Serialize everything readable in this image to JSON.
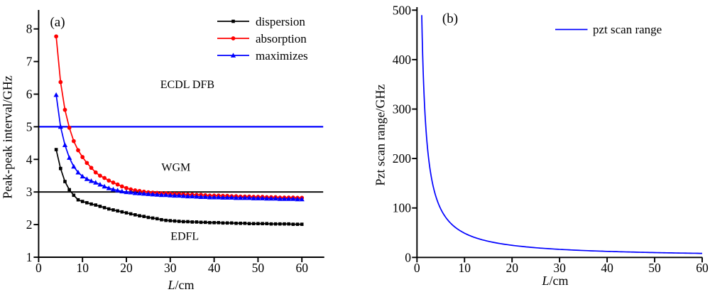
{
  "figure": {
    "background": "#ffffff"
  },
  "chart_data": [
    {
      "type": "line",
      "panel_label": "(a)",
      "xlabel": "L/cm",
      "xlabel_italic": "L",
      "xlabel_unit": "/cm",
      "ylabel": "Peak-peak interval/GHz",
      "xlim": [
        0,
        65
      ],
      "ylim": [
        1,
        8.6
      ],
      "xticks": [
        0,
        10,
        20,
        30,
        40,
        50,
        60
      ],
      "yticks": [
        1,
        2,
        3,
        4,
        5,
        6,
        7,
        8
      ],
      "grid": false,
      "legend_position": "top-right-inside",
      "x": [
        4,
        5,
        6,
        7,
        8,
        9,
        10,
        11,
        12,
        13,
        14,
        15,
        16,
        17,
        18,
        19,
        20,
        21,
        22,
        23,
        24,
        25,
        26,
        27,
        28,
        29,
        30,
        31,
        32,
        33,
        34,
        35,
        36,
        37,
        38,
        39,
        40,
        41,
        42,
        43,
        44,
        45,
        46,
        47,
        48,
        49,
        50,
        51,
        52,
        53,
        54,
        55,
        56,
        57,
        58,
        59,
        60
      ],
      "series": [
        {
          "name": "dispersion",
          "color": "#000000",
          "marker": "square",
          "values": [
            4.3,
            3.72,
            3.32,
            3.07,
            2.9,
            2.76,
            2.71,
            2.67,
            2.63,
            2.6,
            2.56,
            2.52,
            2.48,
            2.45,
            2.42,
            2.39,
            2.36,
            2.33,
            2.3,
            2.27,
            2.25,
            2.22,
            2.2,
            2.18,
            2.15,
            2.13,
            2.12,
            2.11,
            2.1,
            2.09,
            2.09,
            2.08,
            2.08,
            2.07,
            2.07,
            2.06,
            2.06,
            2.06,
            2.05,
            2.05,
            2.05,
            2.04,
            2.04,
            2.04,
            2.03,
            2.03,
            2.03,
            2.03,
            2.03,
            2.02,
            2.02,
            2.02,
            2.02,
            2.02,
            2.01,
            2.01,
            2.01
          ]
        },
        {
          "name": "absorption",
          "color": "#ff0000",
          "marker": "circle",
          "values": [
            7.77,
            6.37,
            5.52,
            4.97,
            4.56,
            4.28,
            4.07,
            3.89,
            3.74,
            3.6,
            3.5,
            3.43,
            3.35,
            3.29,
            3.23,
            3.17,
            3.12,
            3.08,
            3.05,
            3.03,
            3.01,
            2.99,
            2.98,
            2.97,
            2.96,
            2.96,
            2.95,
            2.94,
            2.94,
            2.93,
            2.92,
            2.92,
            2.91,
            2.91,
            2.9,
            2.89,
            2.89,
            2.89,
            2.88,
            2.88,
            2.87,
            2.87,
            2.86,
            2.86,
            2.86,
            2.85,
            2.85,
            2.85,
            2.84,
            2.84,
            2.84,
            2.83,
            2.83,
            2.83,
            2.83,
            2.82,
            2.82
          ]
        },
        {
          "name": "maximizes",
          "color": "#0000ff",
          "marker": "triangle-up",
          "values": [
            5.98,
            5.0,
            4.44,
            4.05,
            3.78,
            3.6,
            3.48,
            3.4,
            3.34,
            3.29,
            3.23,
            3.17,
            3.12,
            3.08,
            3.05,
            3.02,
            3.0,
            2.99,
            2.97,
            2.96,
            2.95,
            2.94,
            2.93,
            2.92,
            2.91,
            2.91,
            2.9,
            2.89,
            2.89,
            2.88,
            2.87,
            2.87,
            2.86,
            2.85,
            2.85,
            2.84,
            2.84,
            2.84,
            2.83,
            2.83,
            2.83,
            2.82,
            2.82,
            2.82,
            2.82,
            2.81,
            2.81,
            2.81,
            2.8,
            2.8,
            2.8,
            2.79,
            2.79,
            2.79,
            2.79,
            2.78,
            2.78
          ]
        }
      ],
      "reference_lines": [
        {
          "y": 5.0,
          "color": "#0000ff"
        },
        {
          "y": 3.0,
          "color": "#000000"
        }
      ],
      "annotations": [
        {
          "text": "ECDL DFB",
          "x": 33.9,
          "y": 6.3
        },
        {
          "text": "WGM",
          "x": 31.3,
          "y": 3.77
        },
        {
          "text": "EDFL",
          "x": 33.3,
          "y": 1.65
        }
      ]
    },
    {
      "type": "line",
      "panel_label": "(b)",
      "xlabel": "L/cm",
      "xlabel_italic": "L",
      "xlabel_unit": "/cm",
      "ylabel": "Pzt scan range/GHz",
      "xlim": [
        0,
        60
      ],
      "ylim": [
        0,
        505
      ],
      "xticks": [
        0,
        10,
        20,
        30,
        40,
        50,
        60
      ],
      "yticks": [
        0,
        100,
        200,
        300,
        400,
        500
      ],
      "grid": false,
      "legend_position": "top-right-inside",
      "series": [
        {
          "name": "pzt scan range",
          "color": "#0000ff",
          "marker": "none",
          "x": [
            1.0,
            1.1,
            1.2,
            1.3,
            1.4,
            1.5,
            1.6,
            1.7,
            1.8,
            1.9,
            2.0,
            2.1,
            2.2,
            2.3,
            2.4,
            2.5,
            2.6,
            2.7,
            2.8,
            2.9,
            3.0,
            3.1,
            3.2,
            3.3,
            3.4,
            3.5,
            3.6,
            3.7,
            3.8,
            3.9,
            4.0,
            4.1,
            4.2,
            4.3,
            4.4,
            4.5,
            4.6,
            4.7,
            4.8,
            4.9,
            5.0,
            5.25,
            5.5,
            5.75,
            6.0,
            6.25,
            6.5,
            6.75,
            7.0,
            7.25,
            7.5,
            7.75,
            8.0,
            8.25,
            8.5,
            8.75,
            9.0,
            9.25,
            9.5,
            9.75,
            10.0,
            10.25,
            10.5,
            10.75,
            11.0,
            11.25,
            11.5,
            11.75,
            12.0,
            12.25,
            12.5,
            12.75,
            13.0,
            13.25,
            13.5,
            13.75,
            14.0,
            14.25,
            14.5,
            14.75,
            15.0,
            15.5,
            16.0,
            16.5,
            17.0,
            17.5,
            18.0,
            18.5,
            19.0,
            19.5,
            20.0,
            20.5,
            21.0,
            21.5,
            22.0,
            22.5,
            23.0,
            23.5,
            24.0,
            24.5,
            25.0,
            25.5,
            26.0,
            26.5,
            27.0,
            27.5,
            28.0,
            28.5,
            29.0,
            29.5,
            30.0,
            30.5,
            31.0,
            31.5,
            32.0,
            32.5,
            33.0,
            33.5,
            34.0,
            34.5,
            35.0,
            35.5,
            36.0,
            36.5,
            37.0,
            37.5,
            38.0,
            38.5,
            39.0,
            39.5,
            40.0,
            40.5,
            41.0,
            41.5,
            42.0,
            42.5,
            43.0,
            43.5,
            44.0,
            44.5,
            45.0,
            45.5,
            46.0,
            46.5,
            47.0,
            47.5,
            48.0,
            48.5,
            49.0,
            49.5,
            50.0,
            50.5,
            51.0,
            51.5,
            52.0,
            52.5,
            53.0,
            53.5,
            54.0,
            54.5,
            55.0,
            55.5,
            56.0,
            56.5,
            57.0,
            57.5,
            58.0,
            58.5,
            59.0,
            59.5,
            60.0
          ],
          "values": [
            490.0,
            445.5,
            408.3,
            376.9,
            350.0,
            326.7,
            306.2,
            288.2,
            272.2,
            257.9,
            245.0,
            233.3,
            222.7,
            213.0,
            204.2,
            196.0,
            188.5,
            181.5,
            175.0,
            169.0,
            163.3,
            158.1,
            153.1,
            148.5,
            144.1,
            140.0,
            136.1,
            132.4,
            128.9,
            125.6,
            122.5,
            119.5,
            116.7,
            114.0,
            111.4,
            108.9,
            106.5,
            104.3,
            102.1,
            100.0,
            98.0,
            93.3,
            89.1,
            85.2,
            81.7,
            78.4,
            75.4,
            72.6,
            70.0,
            67.6,
            65.3,
            63.2,
            61.2,
            59.4,
            57.6,
            56.0,
            54.4,
            53.0,
            51.6,
            50.3,
            49.0,
            47.8,
            46.7,
            45.6,
            44.5,
            43.6,
            42.6,
            41.7,
            40.8,
            40.0,
            39.2,
            38.4,
            37.7,
            37.0,
            36.3,
            35.6,
            35.0,
            34.4,
            33.8,
            33.2,
            32.7,
            31.6,
            30.6,
            29.7,
            28.8,
            28.0,
            27.2,
            26.5,
            25.8,
            25.1,
            24.5,
            23.9,
            23.3,
            22.8,
            22.3,
            21.8,
            21.3,
            20.9,
            20.4,
            20.0,
            19.6,
            19.2,
            18.8,
            18.5,
            18.1,
            17.8,
            17.5,
            17.2,
            16.9,
            16.6,
            16.3,
            16.1,
            15.8,
            15.6,
            15.3,
            15.1,
            14.8,
            14.6,
            14.4,
            14.2,
            14.0,
            13.8,
            13.6,
            13.4,
            13.2,
            13.1,
            12.9,
            12.7,
            12.6,
            12.4,
            12.2,
            12.1,
            12.0,
            11.8,
            11.7,
            11.5,
            11.4,
            11.3,
            11.1,
            11.0,
            10.9,
            10.8,
            10.7,
            10.5,
            10.4,
            10.3,
            10.2,
            10.1,
            10.0,
            9.9,
            9.8,
            9.7,
            9.6,
            9.5,
            9.4,
            9.3,
            9.2,
            9.2,
            9.1,
            9.0,
            8.9,
            8.8,
            8.8,
            8.7,
            8.6,
            8.5,
            8.4,
            8.4,
            8.3,
            8.2,
            8.2
          ]
        }
      ],
      "annotations": []
    }
  ]
}
